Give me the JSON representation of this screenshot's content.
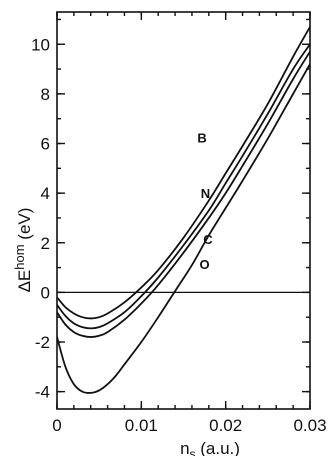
{
  "chart_data": {
    "type": "line",
    "title": "",
    "xlabel": "n_s (a.u.)",
    "ylabel": "ΔE^hom (eV)",
    "xlim": [
      0,
      0.03
    ],
    "ylim": [
      -4.7,
      11.3
    ],
    "x_ticks": [
      0,
      0.01,
      0.02,
      0.03
    ],
    "x_tick_labels": [
      "0",
      "0.01",
      "0.02",
      "0.03"
    ],
    "y_ticks": [
      -4,
      -2,
      0,
      2,
      4,
      6,
      8,
      10
    ],
    "y_tick_labels": [
      "-4",
      "-2",
      "0",
      "2",
      "4",
      "6",
      "8",
      "10"
    ],
    "x_minor_step": 0.002,
    "y_minor_step": 1,
    "reference_line_y": 0,
    "grid": false,
    "legend": "none",
    "series": [
      {
        "name": "B",
        "x": [
          0,
          0.001,
          0.002,
          0.003,
          0.004,
          0.005,
          0.006,
          0.008,
          0.01,
          0.012,
          0.015,
          0.018,
          0.02,
          0.022,
          0.025,
          0.028,
          0.03
        ],
        "y": [
          -0.2,
          -0.6,
          -0.85,
          -1.0,
          -1.05,
          -1.0,
          -0.85,
          -0.4,
          0.2,
          0.9,
          2.2,
          3.7,
          4.8,
          5.9,
          7.6,
          9.5,
          10.7
        ]
      },
      {
        "name": "N",
        "x": [
          0,
          0.001,
          0.002,
          0.003,
          0.004,
          0.005,
          0.006,
          0.008,
          0.01,
          0.012,
          0.015,
          0.018,
          0.02,
          0.022,
          0.025,
          0.028,
          0.03
        ],
        "y": [
          -0.5,
          -0.95,
          -1.25,
          -1.4,
          -1.45,
          -1.4,
          -1.25,
          -0.8,
          -0.15,
          0.6,
          1.9,
          3.3,
          4.4,
          5.5,
          7.2,
          9.0,
          10.0
        ]
      },
      {
        "name": "C",
        "x": [
          0,
          0.001,
          0.002,
          0.003,
          0.004,
          0.005,
          0.006,
          0.008,
          0.01,
          0.012,
          0.015,
          0.018,
          0.02,
          0.022,
          0.025,
          0.028,
          0.03
        ],
        "y": [
          -0.8,
          -1.3,
          -1.6,
          -1.75,
          -1.8,
          -1.75,
          -1.6,
          -1.1,
          -0.45,
          0.3,
          1.6,
          3.0,
          4.0,
          5.1,
          6.8,
          8.6,
          9.7
        ]
      },
      {
        "name": "O",
        "x": [
          0,
          0.001,
          0.002,
          0.003,
          0.004,
          0.005,
          0.006,
          0.007,
          0.008,
          0.01,
          0.012,
          0.014,
          0.016,
          0.018,
          0.02,
          0.022,
          0.025,
          0.028,
          0.03
        ],
        "y": [
          -1.8,
          -3.0,
          -3.7,
          -4.0,
          -4.05,
          -3.95,
          -3.7,
          -3.35,
          -2.9,
          -2.0,
          -1.0,
          0.05,
          1.1,
          2.3,
          3.4,
          4.5,
          6.2,
          8.0,
          9.2
        ]
      }
    ],
    "curve_labels": [
      {
        "text": "B",
        "x": 0.0172,
        "y": 6.05
      },
      {
        "text": "N",
        "x": 0.0176,
        "y": 3.8
      },
      {
        "text": "C",
        "x": 0.0179,
        "y": 1.95
      },
      {
        "text": "O",
        "x": 0.0175,
        "y": 0.95
      }
    ]
  }
}
